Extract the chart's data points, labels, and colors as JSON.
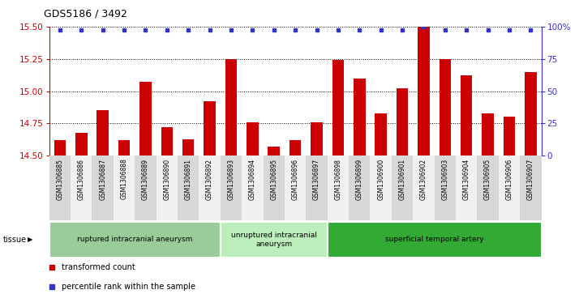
{
  "title": "GDS5186 / 3492",
  "samples": [
    "GSM1306885",
    "GSM1306886",
    "GSM1306887",
    "GSM1306888",
    "GSM1306889",
    "GSM1306890",
    "GSM1306891",
    "GSM1306892",
    "GSM1306893",
    "GSM1306894",
    "GSM1306895",
    "GSM1306896",
    "GSM1306897",
    "GSM1306898",
    "GSM1306899",
    "GSM1306900",
    "GSM1306901",
    "GSM1306902",
    "GSM1306903",
    "GSM1306904",
    "GSM1306905",
    "GSM1306906",
    "GSM1306907"
  ],
  "bar_values": [
    14.62,
    14.68,
    14.85,
    14.62,
    15.07,
    14.72,
    14.63,
    14.92,
    15.25,
    14.76,
    14.57,
    14.62,
    14.76,
    15.24,
    15.1,
    14.83,
    15.02,
    15.5,
    15.25,
    15.12,
    14.83,
    14.8,
    15.15
  ],
  "percentile_values": [
    97,
    97,
    97,
    97,
    97,
    97,
    97,
    97,
    97,
    97,
    97,
    97,
    97,
    97,
    97,
    97,
    97,
    100,
    97,
    97,
    97,
    97,
    97
  ],
  "ylim_left": [
    14.5,
    15.5
  ],
  "ylim_right": [
    0,
    100
  ],
  "yticks_left": [
    14.5,
    14.75,
    15.0,
    15.25,
    15.5
  ],
  "yticks_right": [
    0,
    25,
    50,
    75,
    100
  ],
  "bar_color": "#cc0000",
  "dot_color": "#3333cc",
  "plot_bg": "#ffffff",
  "label_bg_odd": "#d8d8d8",
  "label_bg_even": "#f0f0f0",
  "groups": [
    {
      "label": "ruptured intracranial aneurysm",
      "start": 0,
      "end": 8,
      "color": "#99cc99"
    },
    {
      "label": "unruptured intracranial\naneurysm",
      "start": 8,
      "end": 13,
      "color": "#bbeebb"
    },
    {
      "label": "superficial temporal artery",
      "start": 13,
      "end": 23,
      "color": "#33aa33"
    }
  ],
  "tissue_label": "tissue",
  "legend_items": [
    {
      "label": "transformed count",
      "color": "#cc0000"
    },
    {
      "label": "percentile rank within the sample",
      "color": "#3333cc"
    }
  ]
}
